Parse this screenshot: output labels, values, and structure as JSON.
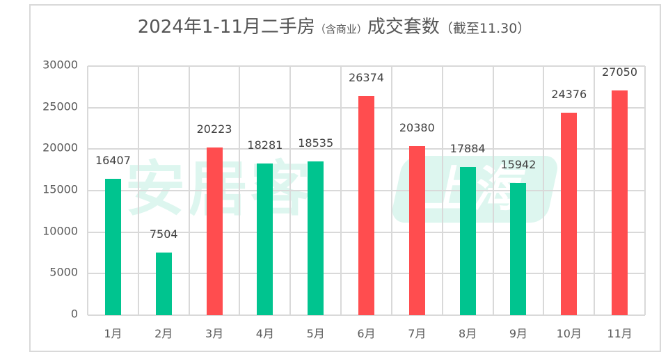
{
  "title": {
    "main": "2024年1-11月二手房",
    "note": "（含商业）",
    "tail": "成交套数",
    "paren": "（截至11.30）"
  },
  "watermark": {
    "brand": "安居客",
    "city": "上海"
  },
  "colors": {
    "green": "#00c48f",
    "red": "#ff4d4f",
    "grid": "#d9d9d9",
    "text": "#595959"
  },
  "y_axis": {
    "ticks": [
      "30000",
      "25000",
      "20000",
      "15000",
      "10000",
      "5000",
      "0"
    ]
  },
  "chart_data": {
    "type": "bar",
    "title": "2024年1-11月二手房（含商业）成交套数（截至11.30）",
    "xlabel": "",
    "ylabel": "",
    "ylim": [
      0,
      30000
    ],
    "grid": true,
    "legend": null,
    "categories": [
      "1月",
      "2月",
      "3月",
      "4月",
      "5月",
      "6月",
      "7月",
      "8月",
      "9月",
      "10月",
      "11月"
    ],
    "values": [
      16407,
      7504,
      20223,
      18281,
      18535,
      26374,
      20380,
      17884,
      15942,
      24376,
      27050
    ],
    "bar_colors": [
      "green",
      "green",
      "red",
      "green",
      "green",
      "red",
      "red",
      "green",
      "green",
      "red",
      "red"
    ],
    "annotations": "Bars above 20000 highlighted in red; others green"
  }
}
